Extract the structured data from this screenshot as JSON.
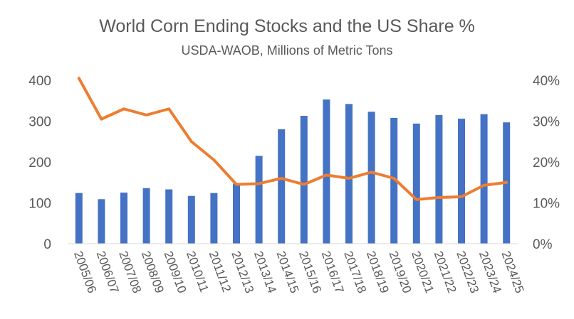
{
  "chart_data": {
    "type": "bar+line",
    "title": "World Corn Ending Stocks and the US Share %",
    "subtitle": "USDA-WAOB, Millions of Metric Tons",
    "categories": [
      "2005/06",
      "2006/07",
      "2007/08",
      "2008/09",
      "2009/10",
      "2010/11",
      "2011/12",
      "2012/13",
      "2013/14",
      "2014/15",
      "2015/16",
      "2016/17",
      "2017/18",
      "2018/19",
      "2019/20",
      "2020/21",
      "2021/22",
      "2022/23",
      "2023/24",
      "2024/25"
    ],
    "series": [
      {
        "type": "bar",
        "axis": "left",
        "color": "#4472C4",
        "values": [
          124,
          109,
          125,
          136,
          133,
          117,
          124,
          147,
          215,
          280,
          313,
          353,
          342,
          323,
          308,
          294,
          315,
          306,
          317,
          297
        ]
      },
      {
        "type": "line",
        "axis": "right",
        "color": "#ED7D31",
        "values": [
          40.5,
          30.5,
          33.0,
          31.5,
          33.0,
          25.0,
          20.5,
          14.5,
          14.7,
          16.0,
          14.5,
          16.8,
          16.0,
          17.5,
          16.0,
          10.8,
          11.3,
          11.5,
          14.3,
          15.0
        ]
      }
    ],
    "y_left": {
      "lim": [
        0,
        400
      ],
      "ticks": [
        "0",
        "100",
        "200",
        "300",
        "400"
      ]
    },
    "y_right": {
      "lim": [
        0,
        40
      ],
      "ticks": [
        "0%",
        "10%",
        "20%",
        "30%",
        "40%"
      ]
    },
    "grid": false,
    "legend": "none"
  }
}
